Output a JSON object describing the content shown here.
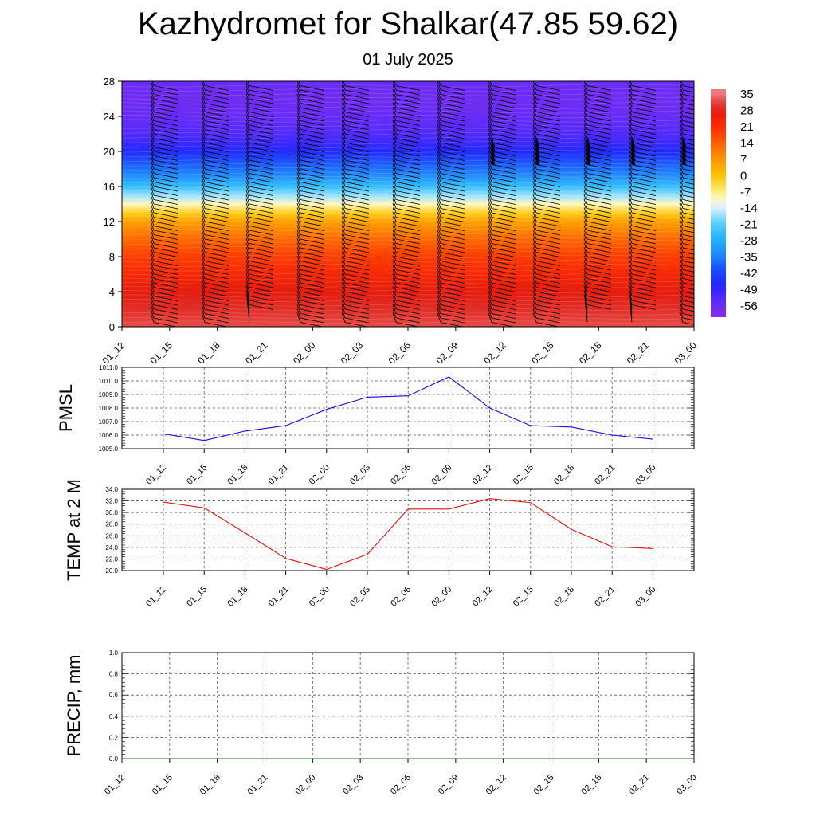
{
  "header": {
    "title": "Kazhydromet for Shalkar(47.85 59.62)",
    "subtitle": "01 July 2025"
  },
  "chart_data": [
    {
      "type": "heatmap",
      "title": "",
      "x_ticks": [
        "01_12",
        "01_15",
        "01_18",
        "01_21",
        "02_00",
        "02_03",
        "02_06",
        "02_09",
        "02_12",
        "02_15",
        "02_18",
        "02_21",
        "03_00"
      ],
      "y_ticks": [
        0,
        4,
        8,
        12,
        16,
        20,
        24,
        28
      ],
      "ylim": [
        0,
        28
      ],
      "colorbar_labels": [
        35,
        28,
        21,
        14,
        7,
        0,
        -7,
        -14,
        -21,
        -28,
        -35,
        -42,
        -49,
        -56
      ],
      "colorbar_range": [
        -63,
        38
      ],
      "temperature_profile": {
        "levels": [
          0,
          2,
          4,
          6,
          8,
          10,
          12,
          13,
          14,
          15,
          16,
          18,
          20,
          22,
          24,
          26,
          28
        ],
        "values": [
          33,
          30,
          27,
          23,
          19,
          13,
          5,
          -2,
          -10,
          -18,
          -26,
          -38,
          -48,
          -55,
          -58,
          -59,
          -58
        ]
      },
      "wind_barbs": true,
      "grid": false
    },
    {
      "type": "line",
      "ylabel": "PMSL",
      "x": [
        "01_12",
        "01_15",
        "01_18",
        "01_21",
        "02_00",
        "02_03",
        "02_06",
        "02_09",
        "02_12",
        "02_15",
        "02_18",
        "02_21",
        "03_00"
      ],
      "y_ticks": [
        "1005.0",
        "1006.0",
        "1007.0",
        "1008.0",
        "1009.0",
        "1010.0",
        "1011.0"
      ],
      "ylim": [
        1005,
        1011
      ],
      "series": [
        {
          "color": "#1010e0",
          "values": [
            1006.1,
            1005.6,
            1006.3,
            1006.7,
            1007.9,
            1008.8,
            1008.9,
            1010.3,
            1008.0,
            1006.7,
            1006.6,
            1006.0,
            1005.7
          ]
        }
      ],
      "grid": true
    },
    {
      "type": "line",
      "ylabel": "TEMP at 2 M",
      "x": [
        "01_12",
        "01_15",
        "01_18",
        "01_21",
        "02_00",
        "02_03",
        "02_06",
        "02_09",
        "02_12",
        "02_15",
        "02_18",
        "02_21",
        "03_00"
      ],
      "y_ticks": [
        "20.0",
        "22.0",
        "24.0",
        "26.0",
        "28.0",
        "30.0",
        "32.0",
        "34.0"
      ],
      "ylim": [
        20,
        34
      ],
      "series": [
        {
          "color": "#e01010",
          "values": [
            31.8,
            30.8,
            26.5,
            22.1,
            20.2,
            22.8,
            30.6,
            30.6,
            32.4,
            31.7,
            27.1,
            24.1,
            23.8
          ]
        }
      ],
      "grid": true
    },
    {
      "type": "line",
      "ylabel": "PRECIP, mm",
      "x_ticks": [
        "01_12",
        "01_15",
        "01_18",
        "01_21",
        "02_00",
        "02_03",
        "02_06",
        "02_09",
        "02_12",
        "02_15",
        "02_18",
        "02_21",
        "03_00"
      ],
      "y_ticks": [
        "0.0",
        "0.2",
        "0.4",
        "0.6",
        "0.8",
        "1.0"
      ],
      "ylim": [
        0,
        1
      ],
      "series": [
        {
          "color": "#1a7a1a",
          "values": [
            0,
            0,
            0,
            0,
            0,
            0,
            0,
            0,
            0,
            0,
            0,
            0,
            0
          ]
        }
      ],
      "grid": true
    }
  ]
}
